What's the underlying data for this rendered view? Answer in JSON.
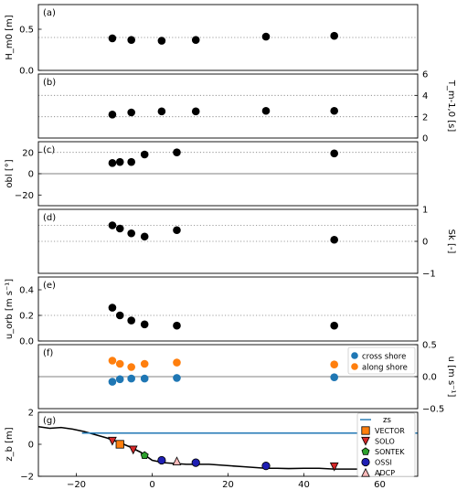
{
  "chart_data": [
    {
      "panel": "(a)",
      "type": "scatter",
      "ylabel": "H_m0 [m]",
      "ylabel_side": "left",
      "ylim": [
        0,
        0.8
      ],
      "yticks": [
        0.0,
        0.5
      ],
      "dotted_lines": [
        0.4
      ],
      "x": [
        -10.5,
        -5.5,
        2.5,
        11.5,
        30,
        48
      ],
      "y": [
        0.39,
        0.37,
        0.36,
        0.37,
        0.41,
        0.42
      ]
    },
    {
      "panel": "(b)",
      "type": "scatter",
      "ylabel": "T_m-1,0 [s]",
      "ylabel_side": "right",
      "ylim": [
        0,
        6
      ],
      "yticks": [
        0,
        2,
        4,
        6
      ],
      "dotted_lines": [
        2,
        4
      ],
      "x": [
        -10.5,
        -5.5,
        2.5,
        11.5,
        30,
        48
      ],
      "y": [
        2.2,
        2.4,
        2.5,
        2.5,
        2.55,
        2.55
      ]
    },
    {
      "panel": "(c)",
      "type": "scatter",
      "ylabel": "obl [°]",
      "ylabel_side": "left",
      "ylim": [
        -30,
        30
      ],
      "yticks": [
        -20,
        0,
        20
      ],
      "solid_lines": [
        0
      ],
      "dotted_lines": [
        20
      ],
      "x": [
        -10.5,
        -8.5,
        -5.5,
        -2,
        6.5,
        48
      ],
      "y": [
        10,
        11,
        11,
        18,
        20,
        19
      ]
    },
    {
      "panel": "(d)",
      "type": "scatter",
      "ylabel": "Sk [-]",
      "ylabel_side": "right",
      "ylim": [
        -1,
        1
      ],
      "yticks": [
        -1,
        0,
        1
      ],
      "dotted_lines": [
        0.5,
        0
      ],
      "x": [
        -10.5,
        -8.5,
        -5.5,
        -2,
        6.5,
        48
      ],
      "y": [
        0.5,
        0.4,
        0.25,
        0.15,
        0.35,
        0.05
      ]
    },
    {
      "panel": "(e)",
      "type": "scatter",
      "ylabel": "u_orb [m s⁻¹]",
      "ylabel_side": "left",
      "ylim": [
        0,
        0.5
      ],
      "yticks": [
        0.0,
        0.2,
        0.4
      ],
      "dotted_lines": [
        0.2
      ],
      "x": [
        -10.5,
        -8.5,
        -5.5,
        -2,
        6.5,
        48
      ],
      "y": [
        0.26,
        0.2,
        0.16,
        0.13,
        0.12,
        0.12
      ]
    },
    {
      "panel": "(f)",
      "type": "scatter",
      "ylabel": "u [m s⁻¹]",
      "ylabel_side": "right",
      "ylim": [
        -0.5,
        0.5
      ],
      "yticks": [
        -0.5,
        0.0,
        0.5
      ],
      "solid_lines": [
        0
      ],
      "legend": "top-right",
      "series": [
        {
          "name": "cross shore",
          "color": "#1f77b4",
          "x": [
            -10.5,
            -8.5,
            -5.5,
            -2,
            6.5,
            48
          ],
          "y": [
            -0.08,
            -0.04,
            -0.03,
            -0.03,
            -0.02,
            -0.01
          ]
        },
        {
          "name": "along shore",
          "color": "#ff7f0e",
          "x": [
            -10.5,
            -8.5,
            -5.5,
            -2,
            6.5,
            48
          ],
          "y": [
            0.25,
            0.2,
            0.15,
            0.2,
            0.22,
            0.19
          ]
        }
      ]
    },
    {
      "panel": "(g)",
      "type": "line",
      "ylabel": "z_b [m]",
      "ylabel_side": "left",
      "ylim": [
        -2,
        2
      ],
      "yticks": [
        -2,
        0,
        2
      ],
      "xlim": [
        -30,
        70
      ],
      "xticks": [
        -20,
        0,
        20,
        40,
        60
      ],
      "legend": "top-right",
      "zs": {
        "name": "zs",
        "color": "#1f77b4",
        "x": [
          -18.5,
          70
        ],
        "y": [
          0.7,
          0.7
        ]
      },
      "bed_profile": {
        "x": [
          -30,
          -27,
          -24,
          -21,
          -18,
          -15,
          -12,
          -9,
          -6,
          -3,
          0,
          3,
          6,
          9,
          12,
          15,
          18,
          21,
          24,
          27,
          30,
          33,
          36,
          40,
          44,
          48,
          52,
          56,
          60,
          64,
          66
        ],
        "y": [
          1.1,
          1.0,
          1.05,
          0.95,
          0.8,
          0.6,
          0.4,
          0.15,
          -0.15,
          -0.5,
          -1.0,
          -1.15,
          -1.2,
          -1.25,
          -1.25,
          -1.25,
          -1.3,
          -1.35,
          -1.4,
          -1.45,
          -1.5,
          -1.5,
          -1.52,
          -1.5,
          -1.5,
          -1.55,
          -1.55,
          -1.55,
          -1.55,
          -1.55,
          -1.5
        ]
      },
      "instruments": [
        {
          "name": "VECTOR",
          "marker": "square",
          "color": "#ff7f0e",
          "x": [
            -8.5
          ],
          "y": [
            0.0
          ]
        },
        {
          "name": "SOLO",
          "marker": "triangle-down",
          "color": "#d62728",
          "x": [
            -10.5,
            -5,
            48
          ],
          "y": [
            0.2,
            -0.35,
            -1.4
          ]
        },
        {
          "name": "SONTEK",
          "marker": "pentagon",
          "color": "#2ca02c",
          "x": [
            -2
          ],
          "y": [
            -0.7
          ]
        },
        {
          "name": "OSSI",
          "marker": "circle",
          "color": "#1f1fb4",
          "x": [
            2.5,
            11.5,
            30
          ],
          "y": [
            -1.0,
            -1.15,
            -1.35
          ]
        },
        {
          "name": "ADCP",
          "marker": "triangle-up",
          "color": "#ffbbbb",
          "x": [
            6.5
          ],
          "y": [
            -1.05
          ]
        }
      ]
    }
  ]
}
